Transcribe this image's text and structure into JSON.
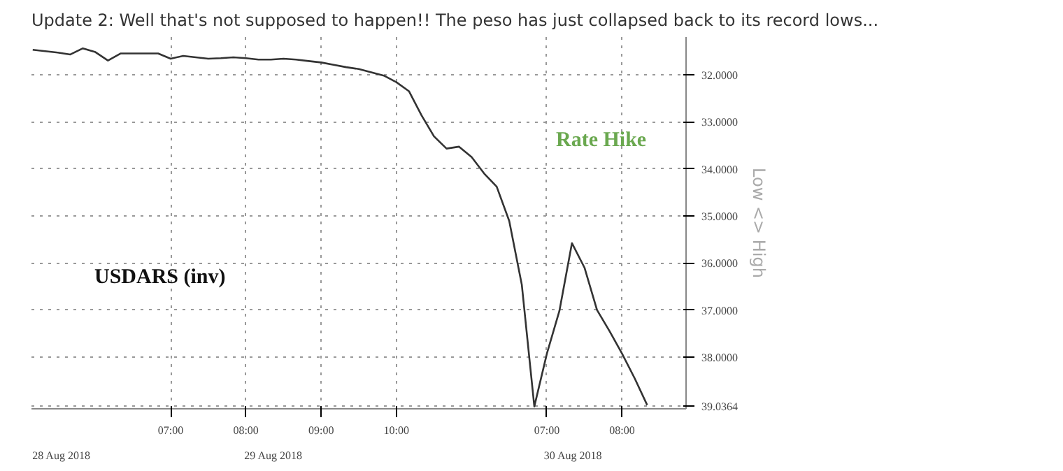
{
  "chart_data": {
    "type": "line",
    "title": "Update 2: Well that's not supposed to happen!! The peso has just collapsed back to its record lows...",
    "ylabel": "Low <> High",
    "annotations": [
      "USDARS (inv)",
      "Rate Hike",
      "28 Aug 2018",
      "29 Aug 2018",
      "30 Aug 2018"
    ],
    "categories": [
      null,
      null,
      null,
      null,
      null,
      null,
      null,
      null,
      null,
      null,
      null,
      "07:00",
      null,
      null,
      null,
      null,
      null,
      "08:00",
      null,
      null,
      null,
      null,
      null,
      "09:00",
      null,
      null,
      null,
      null,
      null,
      "10:00",
      null,
      null,
      null,
      null,
      null,
      null,
      null,
      null,
      null,
      null,
      null,
      "07:00",
      null,
      null,
      null,
      null,
      null,
      "08:00",
      null,
      null,
      null,
      null,
      null
    ],
    "series": [
      {
        "color": "#333333",
        "values": [
          31.47,
          31.5,
          31.53,
          31.57,
          31.44,
          31.52,
          31.7,
          31.55,
          31.55,
          31.55,
          31.55,
          31.66,
          31.6,
          31.63,
          31.66,
          31.65,
          31.63,
          31.65,
          31.68,
          31.68,
          31.66,
          31.68,
          31.71,
          31.74,
          31.79,
          31.84,
          31.88,
          31.95,
          32.02,
          32.16,
          32.35,
          32.86,
          33.31,
          33.57,
          33.53,
          33.75,
          34.1,
          34.38,
          35.11,
          36.46,
          39.05,
          37.93,
          37.02,
          35.58,
          36.1,
          37.0,
          37.45,
          37.93,
          38.45,
          39.02,
          null,
          null,
          null
        ]
      }
    ],
    "ylim": [
      39.1,
      31.2
    ],
    "yticks": [
      {
        "value": 32,
        "label": "32.0000"
      },
      {
        "value": 33,
        "label": "33.0000"
      },
      {
        "value": 34,
        "label": "34.0000"
      },
      {
        "value": 35,
        "label": "35.0000"
      },
      {
        "value": 36,
        "label": "36.0000"
      },
      {
        "value": 37,
        "label": "37.0000"
      },
      {
        "value": 38,
        "label": "38.0000"
      },
      {
        "value": 39.0364,
        "label": "39.0364"
      }
    ],
    "grid": true
  }
}
